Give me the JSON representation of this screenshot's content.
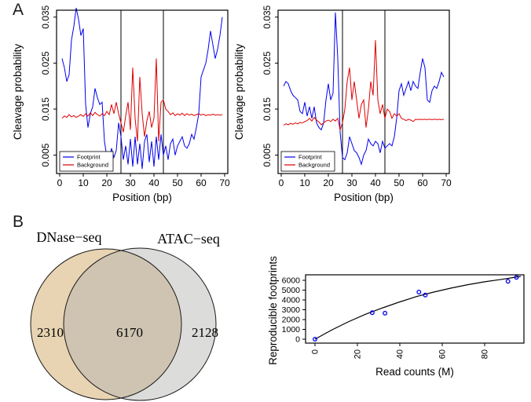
{
  "figure": {
    "panel_a_label": "A",
    "panel_b_label": "B",
    "colors": {
      "footprint": "#0000EE",
      "background": "#DD0000",
      "axis": "#000000",
      "fit_line": "#000000",
      "scatter_point": "#0000EE",
      "venn_left_fill": "#e8d4b2",
      "venn_right_fill": "#dcdcda",
      "venn_overlap_fill": "#cfc4b2",
      "venn_stroke": "#1a1a1a"
    }
  },
  "chart_data": [
    {
      "id": "cleavage_left",
      "type": "line",
      "xlabel": "Position (bp)",
      "ylabel": "Cleavage probability",
      "xlim": [
        0,
        70
      ],
      "ylim": [
        0.001,
        0.0365
      ],
      "xticks": [
        0,
        10,
        20,
        30,
        40,
        50,
        60,
        70
      ],
      "yticks": [
        0.005,
        0.015,
        0.025,
        0.035
      ],
      "ytick_labels": [
        "0.005",
        "0.015",
        "0.025",
        "0.035"
      ],
      "vlines": [
        26,
        44
      ],
      "grid": false,
      "legend": {
        "position": "bottom-left",
        "entries": [
          "Footprint",
          "Background"
        ]
      },
      "x": [
        1,
        2,
        3,
        4,
        5,
        6,
        7,
        8,
        9,
        10,
        11,
        12,
        13,
        14,
        15,
        16,
        17,
        18,
        19,
        20,
        21,
        22,
        23,
        24,
        25,
        26,
        27,
        28,
        29,
        30,
        31,
        32,
        33,
        34,
        35,
        36,
        37,
        38,
        39,
        40,
        41,
        42,
        43,
        44,
        45,
        46,
        47,
        48,
        49,
        50,
        51,
        52,
        53,
        54,
        55,
        56,
        57,
        58,
        59,
        60,
        61,
        62,
        63,
        64,
        65,
        66,
        67,
        68,
        69
      ],
      "series": [
        {
          "name": "Footprint",
          "color": "#0000EE",
          "values": [
            0.026,
            0.024,
            0.021,
            0.0225,
            0.03,
            0.033,
            0.037,
            0.0345,
            0.031,
            0.0325,
            0.016,
            0.011,
            0.014,
            0.0155,
            0.0195,
            0.0175,
            0.016,
            0.0165,
            0.008,
            0.0045,
            0.004,
            0.0065,
            0.0045,
            0.006,
            0.012,
            0.009,
            0.004,
            0.007,
            0.003,
            0.0085,
            0.0025,
            0.009,
            0.003,
            0.0075,
            0.002,
            0.008,
            0.0095,
            0.0035,
            0.008,
            0.0025,
            0.009,
            0.004,
            0.0095,
            0.005,
            0.007,
            0.004,
            0.0075,
            0.0085,
            0.005,
            0.007,
            0.008,
            0.009,
            0.007,
            0.0065,
            0.0075,
            0.0095,
            0.0085,
            0.011,
            0.014,
            0.022,
            0.0235,
            0.025,
            0.028,
            0.032,
            0.029,
            0.026,
            0.028,
            0.031,
            0.035
          ]
        },
        {
          "name": "Background",
          "color": "#DD0000",
          "values": [
            0.013,
            0.0135,
            0.0132,
            0.0138,
            0.0133,
            0.0136,
            0.0132,
            0.0135,
            0.0138,
            0.0134,
            0.014,
            0.0135,
            0.0142,
            0.0136,
            0.0143,
            0.0138,
            0.0135,
            0.014,
            0.0136,
            0.0145,
            0.0138,
            0.016,
            0.014,
            0.0165,
            0.014,
            0.012,
            0.01,
            0.0135,
            0.0165,
            0.0105,
            0.024,
            0.013,
            0.008,
            0.022,
            0.014,
            0.009,
            0.0125,
            0.0145,
            0.011,
            0.013,
            0.026,
            0.008,
            0.0165,
            0.017,
            0.015,
            0.0145,
            0.0138,
            0.0142,
            0.0136,
            0.014,
            0.0137,
            0.0141,
            0.0136,
            0.014,
            0.0137,
            0.0139,
            0.0136,
            0.0138,
            0.014,
            0.0137,
            0.0139,
            0.0136,
            0.0138,
            0.0137,
            0.0139,
            0.0137,
            0.0138,
            0.0137,
            0.0138
          ]
        }
      ]
    },
    {
      "id": "cleavage_right",
      "type": "line",
      "xlabel": "Position (bp)",
      "ylabel": "Cleavage probability",
      "xlim": [
        0,
        70
      ],
      "ylim": [
        0.001,
        0.0365
      ],
      "xticks": [
        0,
        10,
        20,
        30,
        40,
        50,
        60,
        70
      ],
      "yticks": [
        0.005,
        0.015,
        0.025,
        0.035
      ],
      "ytick_labels": [
        "0.005",
        "0.015",
        "0.025",
        "0.035"
      ],
      "vlines": [
        26,
        44
      ],
      "grid": false,
      "legend": {
        "position": "bottom-left",
        "entries": [
          "Footprint",
          "Background"
        ]
      },
      "x": [
        1,
        2,
        3,
        4,
        5,
        6,
        7,
        8,
        9,
        10,
        11,
        12,
        13,
        14,
        15,
        16,
        17,
        18,
        19,
        20,
        21,
        22,
        23,
        24,
        25,
        26,
        27,
        28,
        29,
        30,
        31,
        32,
        33,
        34,
        35,
        36,
        37,
        38,
        39,
        40,
        41,
        42,
        43,
        44,
        45,
        46,
        47,
        48,
        49,
        50,
        51,
        52,
        53,
        54,
        55,
        56,
        57,
        58,
        59,
        60,
        61,
        62,
        63,
        64,
        65,
        66,
        67,
        68,
        69
      ],
      "series": [
        {
          "name": "Footprint",
          "color": "#0000EE",
          "values": [
            0.02,
            0.021,
            0.0205,
            0.019,
            0.018,
            0.0175,
            0.017,
            0.0145,
            0.014,
            0.0165,
            0.0135,
            0.0155,
            0.013,
            0.0155,
            0.012,
            0.011,
            0.0105,
            0.012,
            0.017,
            0.0205,
            0.017,
            0.0185,
            0.036,
            0.026,
            0.01,
            0.0045,
            0.004,
            0.0055,
            0.009,
            0.0075,
            0.006,
            0.0055,
            0.0045,
            0.003,
            0.005,
            0.006,
            0.0085,
            0.0075,
            0.007,
            0.008,
            0.0075,
            0.0055,
            0.008,
            0.0065,
            0.007,
            0.0075,
            0.007,
            0.009,
            0.013,
            0.019,
            0.0205,
            0.018,
            0.0195,
            0.021,
            0.019,
            0.021,
            0.02,
            0.0195,
            0.023,
            0.026,
            0.024,
            0.017,
            0.0165,
            0.019,
            0.02,
            0.0195,
            0.021,
            0.023,
            0.022
          ]
        },
        {
          "name": "Background",
          "color": "#DD0000",
          "values": [
            0.0115,
            0.0118,
            0.0116,
            0.0119,
            0.0117,
            0.012,
            0.0118,
            0.0121,
            0.012,
            0.0123,
            0.0125,
            0.013,
            0.0124,
            0.0132,
            0.0126,
            0.0122,
            0.0116,
            0.012,
            0.0124,
            0.0126,
            0.0123,
            0.0128,
            0.0124,
            0.013,
            0.0105,
            0.012,
            0.015,
            0.021,
            0.024,
            0.017,
            0.021,
            0.017,
            0.013,
            0.016,
            0.017,
            0.011,
            0.015,
            0.021,
            0.018,
            0.03,
            0.017,
            0.014,
            0.016,
            0.013,
            0.015,
            0.0145,
            0.013,
            0.014,
            0.0135,
            0.014,
            0.013,
            0.0128,
            0.0125,
            0.0128,
            0.0126,
            0.0123,
            0.0128,
            0.0127,
            0.0128,
            0.0127,
            0.0128,
            0.0127,
            0.0128,
            0.0127,
            0.0128,
            0.0127,
            0.0128,
            0.0127,
            0.0128
          ]
        }
      ]
    },
    {
      "id": "venn_footprints",
      "type": "venn",
      "sets": [
        {
          "label": "DNase−seq",
          "unique": 2310,
          "unique_label": "2310"
        },
        {
          "label": "ATAC−seq",
          "unique": 2128,
          "unique_label": "2128"
        }
      ],
      "overlap": 6170,
      "overlap_label": "6170"
    },
    {
      "id": "saturation",
      "type": "scatter",
      "xlabel": "Read counts (M)",
      "ylabel": "Reproducible footprints",
      "xticks": [
        0,
        20,
        40,
        60,
        80
      ],
      "yticks": [
        0,
        1000,
        2000,
        3000,
        4000,
        5000,
        6000
      ],
      "xlim": [
        0,
        98
      ],
      "ylim": [
        -400,
        6550
      ],
      "points": {
        "x": [
          0,
          27,
          33,
          49,
          52,
          91,
          95
        ],
        "y": [
          0,
          2700,
          2650,
          4800,
          4500,
          5900,
          6300
        ]
      },
      "fit_curve": [
        [
          0,
          0
        ],
        [
          8,
          950
        ],
        [
          16,
          1800
        ],
        [
          24,
          2550
        ],
        [
          32,
          3200
        ],
        [
          40,
          3800
        ],
        [
          48,
          4350
        ],
        [
          56,
          4800
        ],
        [
          64,
          5200
        ],
        [
          72,
          5550
        ],
        [
          80,
          5850
        ],
        [
          88,
          6100
        ],
        [
          97,
          6400
        ]
      ]
    }
  ]
}
